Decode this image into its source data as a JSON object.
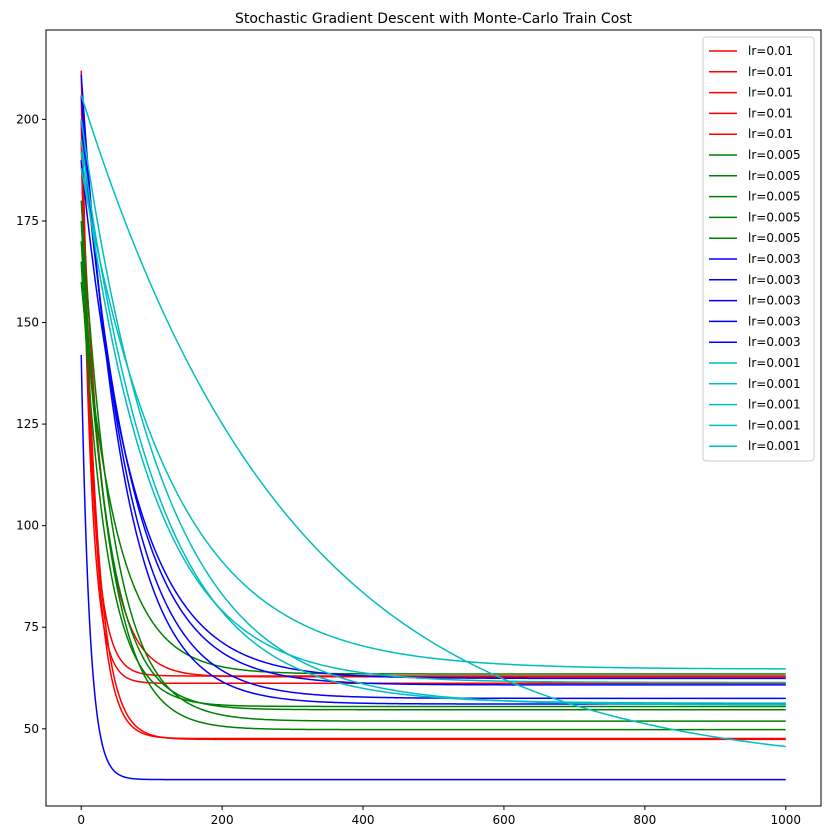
{
  "chart_data": {
    "type": "line",
    "title": "Stochastic Gradient Descent with Monte-Carlo Train Cost",
    "xlabel": "",
    "ylabel": "",
    "xlim": [
      -50,
      1050
    ],
    "ylim": [
      31,
      222
    ],
    "x_ticks": [
      0,
      200,
      400,
      600,
      800,
      1000
    ],
    "y_ticks": [
      50,
      75,
      100,
      125,
      150,
      175,
      200
    ],
    "grid": false,
    "legend_position": "top-right",
    "colors": {
      "lr=0.01": "#ff0000",
      "lr=0.005": "#008000",
      "lr=0.003": "#0000ff",
      "lr=0.001": "#00bfbf"
    },
    "series": [
      {
        "name": "lr=0.01",
        "color": "#ff0000",
        "start": 212,
        "final": 47.6,
        "tau": 18,
        "x": [
          0,
          1000
        ]
      },
      {
        "name": "lr=0.01",
        "color": "#ff0000",
        "start": 206,
        "final": 47.4,
        "tau": 20,
        "x": [
          0,
          1000
        ]
      },
      {
        "name": "lr=0.01",
        "color": "#ff0000",
        "start": 200,
        "final": 61.2,
        "tau": 14,
        "x": [
          0,
          1000
        ]
      },
      {
        "name": "lr=0.01",
        "color": "#ff0000",
        "start": 195,
        "final": 63.0,
        "tau": 16,
        "x": [
          0,
          1000
        ]
      },
      {
        "name": "lr=0.01",
        "color": "#ff0000",
        "start": 190,
        "final": 62.8,
        "tau": 30,
        "x": [
          0,
          1000
        ]
      },
      {
        "name": "lr=0.005",
        "color": "#008000",
        "start": 175,
        "final": 49.8,
        "tau": 40,
        "x": [
          0,
          1000
        ]
      },
      {
        "name": "lr=0.005",
        "color": "#008000",
        "start": 180,
        "final": 51.9,
        "tau": 45,
        "x": [
          0,
          1000
        ]
      },
      {
        "name": "lr=0.005",
        "color": "#008000",
        "start": 170,
        "final": 54.7,
        "tau": 40,
        "x": [
          0,
          1000
        ]
      },
      {
        "name": "lr=0.005",
        "color": "#008000",
        "start": 165,
        "final": 55.5,
        "tau": 35,
        "x": [
          0,
          1000
        ]
      },
      {
        "name": "lr=0.005",
        "color": "#008000",
        "start": 160,
        "final": 63.5,
        "tau": 50,
        "x": [
          0,
          1000
        ]
      },
      {
        "name": "lr=0.003",
        "color": "#0000ff",
        "start": 142,
        "final": 37.5,
        "tau": 12,
        "x": [
          0,
          1000
        ]
      },
      {
        "name": "lr=0.003",
        "color": "#0000ff",
        "start": 211,
        "final": 56.1,
        "tau": 60,
        "x": [
          0,
          1000
        ]
      },
      {
        "name": "lr=0.003",
        "color": "#0000ff",
        "start": 206,
        "final": 57.5,
        "tau": 65,
        "x": [
          0,
          1000
        ]
      },
      {
        "name": "lr=0.003",
        "color": "#0000ff",
        "start": 200,
        "final": 60.8,
        "tau": 70,
        "x": [
          0,
          1000
        ]
      },
      {
        "name": "lr=0.003",
        "color": "#0000ff",
        "start": 190,
        "final": 62.4,
        "tau": 75,
        "x": [
          0,
          1000
        ]
      },
      {
        "name": "lr=0.001",
        "color": "#00bfbf",
        "start": 206,
        "final": 39.7,
        "tau": 300,
        "x": [
          0,
          1000
        ]
      },
      {
        "name": "lr=0.001",
        "color": "#00bfbf",
        "start": 200,
        "final": 55.9,
        "tau": 120,
        "x": [
          0,
          1000
        ]
      },
      {
        "name": "lr=0.001",
        "color": "#00bfbf",
        "start": 195,
        "final": 56.3,
        "tau": 110,
        "x": [
          0,
          1000
        ]
      },
      {
        "name": "lr=0.001",
        "color": "#00bfbf",
        "start": 192,
        "final": 61.4,
        "tau": 100,
        "x": [
          0,
          1000
        ]
      },
      {
        "name": "lr=0.001",
        "color": "#00bfbf",
        "start": 188,
        "final": 64.7,
        "tau": 130,
        "x": [
          0,
          1000
        ]
      }
    ]
  }
}
